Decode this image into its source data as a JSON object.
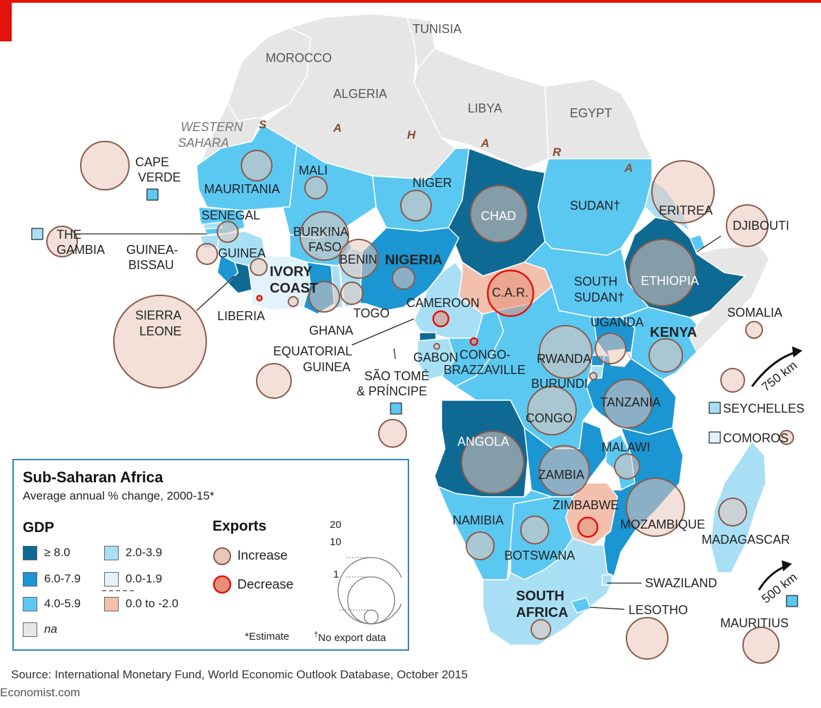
{
  "chart_data": {
    "type": "choropleth",
    "title": "Sub-Saharan Africa",
    "subtitle": "Average annual % change, 2000-15*",
    "gdp_legend": {
      "title": "GDP",
      "classes": [
        {
          "key": "ge8",
          "label": "≥ 8.0",
          "color": "#0f6a93"
        },
        {
          "key": "c6",
          "label": "6.0-7.9",
          "color": "#1b96d3"
        },
        {
          "key": "c4",
          "label": "4.0-5.9",
          "color": "#5bc8f2"
        },
        {
          "key": "c2",
          "label": "2.0-3.9",
          "color": "#a8dff5"
        },
        {
          "key": "c0",
          "label": "0.0-1.9",
          "color": "#e2f3fb"
        },
        {
          "key": "neg",
          "label": "0.0 to -2.0",
          "color": "#f2c0ad"
        },
        {
          "key": "na",
          "label": "na",
          "color": "#e6e6e6"
        }
      ]
    },
    "exports_legend": {
      "title": "Exports",
      "increase": "Increase",
      "decrease": "Decrease",
      "increase_color": "#e8c6ba",
      "decrease_color": "#e3120b",
      "size_scale": [
        20,
        10,
        1
      ]
    },
    "countries": [
      {
        "name": "MOROCCO",
        "gdp": "na"
      },
      {
        "name": "ALGERIA",
        "gdp": "na"
      },
      {
        "name": "TUNISIA",
        "gdp": "na"
      },
      {
        "name": "LIBYA",
        "gdp": "na"
      },
      {
        "name": "EGYPT",
        "gdp": "na"
      },
      {
        "name": "WESTERN SAHARA",
        "gdp": "na"
      },
      {
        "name": "MAURITANIA",
        "gdp": "c4",
        "exports": "increase"
      },
      {
        "name": "MALI",
        "gdp": "c4",
        "exports": "increase"
      },
      {
        "name": "NIGER",
        "gdp": "c4",
        "exports": "increase"
      },
      {
        "name": "CHAD",
        "gdp": "ge8",
        "exports": "increase"
      },
      {
        "name": "SUDAN†",
        "gdp": "c4"
      },
      {
        "name": "ERITREA",
        "gdp": "c2",
        "exports": "increase"
      },
      {
        "name": "DJIBOUTI",
        "gdp": "c4",
        "exports": "increase"
      },
      {
        "name": "ETHIOPIA",
        "gdp": "ge8",
        "exports": "increase"
      },
      {
        "name": "SOMALIA",
        "gdp": "na",
        "exports": "increase"
      },
      {
        "name": "SENEGAL",
        "gdp": "c4",
        "exports": "increase"
      },
      {
        "name": "THE GAMBIA",
        "gdp": "c2",
        "exports": "increase"
      },
      {
        "name": "GUINEA-BISSAU",
        "gdp": "c2",
        "exports": "increase"
      },
      {
        "name": "GUINEA",
        "gdp": "c2",
        "exports": "increase"
      },
      {
        "name": "SIERRA LEONE",
        "gdp": "c6",
        "exports": "increase"
      },
      {
        "name": "LIBERIA",
        "gdp": "ge8",
        "exports": "decrease"
      },
      {
        "name": "IVORY COAST",
        "gdp": "c0",
        "exports": "increase"
      },
      {
        "name": "BURKINA FASO",
        "gdp": "c4",
        "exports": "increase"
      },
      {
        "name": "GHANA",
        "gdp": "c6",
        "exports": "increase"
      },
      {
        "name": "TOGO",
        "gdp": "c2",
        "exports": "increase"
      },
      {
        "name": "BENIN",
        "gdp": "c2",
        "exports": "increase"
      },
      {
        "name": "NIGERIA",
        "gdp": "c6",
        "exports": "increase"
      },
      {
        "name": "CAMEROON",
        "gdp": "c2",
        "exports": "decrease"
      },
      {
        "name": "C.A.R.",
        "gdp": "neg",
        "exports": "decrease"
      },
      {
        "name": "SOUTH SUDAN†",
        "gdp": "c4"
      },
      {
        "name": "EQUATORIAL GUINEA",
        "gdp": "ge8",
        "exports": "increase"
      },
      {
        "name": "SÃO TOMÉ & PRÍNCIPE",
        "gdp": "c4",
        "exports": "increase"
      },
      {
        "name": "GABON",
        "gdp": "c2",
        "exports": "increase"
      },
      {
        "name": "CONGO-BRAZZAVILLE",
        "gdp": "c4",
        "exports": "decrease"
      },
      {
        "name": "UGANDA",
        "gdp": "c6",
        "exports": "increase"
      },
      {
        "name": "KENYA",
        "gdp": "c4",
        "exports": "increase"
      },
      {
        "name": "RWANDA",
        "gdp": "c6",
        "exports": "increase"
      },
      {
        "name": "BURUNDI",
        "gdp": "c2",
        "exports": "increase"
      },
      {
        "name": "CONGO",
        "gdp": "c4",
        "exports": "increase"
      },
      {
        "name": "TANZANIA",
        "gdp": "c6",
        "exports": "increase"
      },
      {
        "name": "ANGOLA",
        "gdp": "ge8",
        "exports": "increase"
      },
      {
        "name": "ZAMBIA",
        "gdp": "c6",
        "exports": "increase"
      },
      {
        "name": "MALAWI",
        "gdp": "c4",
        "exports": "increase"
      },
      {
        "name": "ZIMBABWE",
        "gdp": "neg",
        "exports": "decrease"
      },
      {
        "name": "MOZAMBIQUE",
        "gdp": "c6",
        "exports": "increase"
      },
      {
        "name": "NAMIBIA",
        "gdp": "c4",
        "exports": "increase"
      },
      {
        "name": "BOTSWANA",
        "gdp": "c4",
        "exports": "increase"
      },
      {
        "name": "SOUTH AFRICA",
        "gdp": "c2",
        "exports": "increase"
      },
      {
        "name": "SWAZILAND",
        "gdp": "c2",
        "exports": "increase"
      },
      {
        "name": "LESOTHO",
        "gdp": "c4",
        "exports": "increase"
      },
      {
        "name": "MADAGASCAR",
        "gdp": "c2",
        "exports": "increase"
      },
      {
        "name": "CAPE VERDE",
        "gdp": "c4",
        "exports": "increase"
      },
      {
        "name": "SEYCHELLES",
        "gdp": "c2",
        "exports": "increase"
      },
      {
        "name": "COMOROS",
        "gdp": "c0",
        "exports": "increase"
      },
      {
        "name": "MAURITIUS",
        "gdp": "c4",
        "exports": "increase"
      }
    ],
    "scale_labels": [
      "750 km",
      "500 km"
    ],
    "sahara_letters": [
      "S",
      "A",
      "H",
      "A",
      "R",
      "A"
    ]
  },
  "labels": {
    "morocco": "MOROCCO",
    "algeria": "ALGERIA",
    "tunisia": "TUNISIA",
    "libya": "LIBYA",
    "egypt": "EGYPT",
    "western": "WESTERN",
    "sahara": "SAHARA",
    "cape": "CAPE",
    "verde": "VERDE",
    "mauritania": "MAURITANIA",
    "mali": "MALI",
    "niger": "NIGER",
    "chad": "CHAD",
    "sudan": "SUDAN†",
    "eritrea": "ERITREA",
    "djibouti": "DJIBOUTI",
    "senegal": "SENEGAL",
    "the": "THE",
    "gambia": "GAMBIA",
    "guinea_bissau_1": "GUINEA-",
    "guinea_bissau_2": "BISSAU",
    "guinea": "GUINEA",
    "burkina": "BURKINA",
    "faso": "FASO",
    "benin": "BENIN",
    "nigeria": "NIGERIA",
    "ivory": "IVORY",
    "coast": "COAST",
    "ethiopia": "ETHIOPIA",
    "south_sudan_1": "SOUTH",
    "south_sudan_2": "SUDAN†",
    "car": "C.A.R.",
    "sierra": "SIERRA",
    "leone": "LEONE",
    "liberia": "LIBERIA",
    "cameroon": "CAMEROON",
    "somalia": "SOMALIA",
    "uganda": "UGANDA",
    "kenya": "KENYA",
    "ghana": "GHANA",
    "togo": "TOGO",
    "eq_guinea_1": "EQUATORIAL",
    "eq_guinea_2": "GUINEA",
    "gabon": "GABON",
    "congo_braz_1": "CONGO-",
    "congo_braz_2": "BRAZZAVILLE",
    "rwanda": "RWANDA",
    "burundi": "BURUNDI",
    "sao_tome_1": "SÃO TOMÉ",
    "sao_tome_2": "& PRÍNCIPE",
    "congo": "CONGO",
    "tanzania": "TANZANIA",
    "seychelles": "SEYCHELLES",
    "comoros": "COMOROS",
    "angola": "ANGOLA",
    "malawi": "MALAWI",
    "zambia": "ZAMBIA",
    "zimbabwe": "ZIMBABWE",
    "mozambique": "MOZAMBIQUE",
    "madagascar": "MADAGASCAR",
    "namibia": "NAMIBIA",
    "botswana": "BOTSWANA",
    "swaziland": "SWAZILAND",
    "south_africa_1": "SOUTH",
    "south_africa_2": "AFRICA",
    "lesotho": "LESOTHO",
    "mauritius": "MAURITIUS",
    "scale_750": "750 km",
    "scale_500": "500 km",
    "sah_s": "S",
    "sah_a1": "A",
    "sah_h": "H",
    "sah_a2": "A",
    "sah_r": "R",
    "sah_a3": "A"
  },
  "legend": {
    "title": "Sub-Saharan Africa",
    "subtitle": "Average annual % change, 2000-15*",
    "gdp_title": "GDP",
    "gdp_items": [
      "≥ 8.0",
      "6.0-7.9",
      "4.0-5.9",
      "2.0-3.9",
      "0.0-1.9",
      "0.0 to -2.0",
      "na"
    ],
    "exports_title": "Exports",
    "increase": "Increase",
    "decrease": "Decrease",
    "size_20": "20",
    "size_10": "10",
    "size_1": "1",
    "estimate_note": "*Estimate",
    "no_export_note": "No export data",
    "dagger": "†"
  },
  "source": "Source: International Monetary Fund, World Economic Outlook Database, October 2015",
  "brand": "Economist.com"
}
